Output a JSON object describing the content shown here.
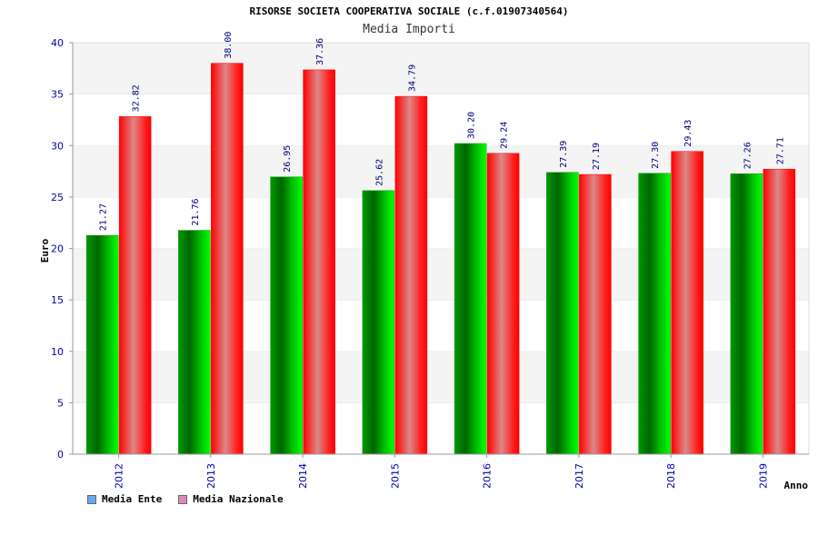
{
  "chart_data": {
    "type": "bar",
    "title": "RISORSE SOCIETA COOPERATIVA SOCIALE (c.f.01907340564)",
    "subtitle": "Media Importi",
    "xlabel": "Anno",
    "ylabel": "Euro",
    "ylim": [
      0,
      40
    ],
    "yticks": [
      0,
      5,
      10,
      15,
      20,
      25,
      30,
      35,
      40
    ],
    "categories": [
      "2012",
      "2013",
      "2014",
      "2015",
      "2016",
      "2017",
      "2018",
      "2019"
    ],
    "series": [
      {
        "name": "Media Ente",
        "color": "#00cc00",
        "legend_color": "#66aaee",
        "values": [
          21.27,
          21.76,
          26.95,
          25.62,
          30.2,
          27.39,
          27.3,
          27.26
        ],
        "labels": [
          "21.27",
          "21.76",
          "26.95",
          "25.62",
          "30.20",
          "27.39",
          "27.30",
          "27.26"
        ]
      },
      {
        "name": "Media Nazionale",
        "color": "#ff0000",
        "legend_color": "#dd88bb",
        "values": [
          32.82,
          38.0,
          37.36,
          34.79,
          29.24,
          27.19,
          29.43,
          27.71
        ],
        "labels": [
          "32.82",
          "38.00",
          "37.36",
          "34.79",
          "29.24",
          "27.19",
          "29.43",
          "27.71"
        ]
      }
    ],
    "grid": true,
    "legend_position": "bottom-left",
    "axis_text_color": "#0000aa",
    "label_text_color": "#000080"
  }
}
